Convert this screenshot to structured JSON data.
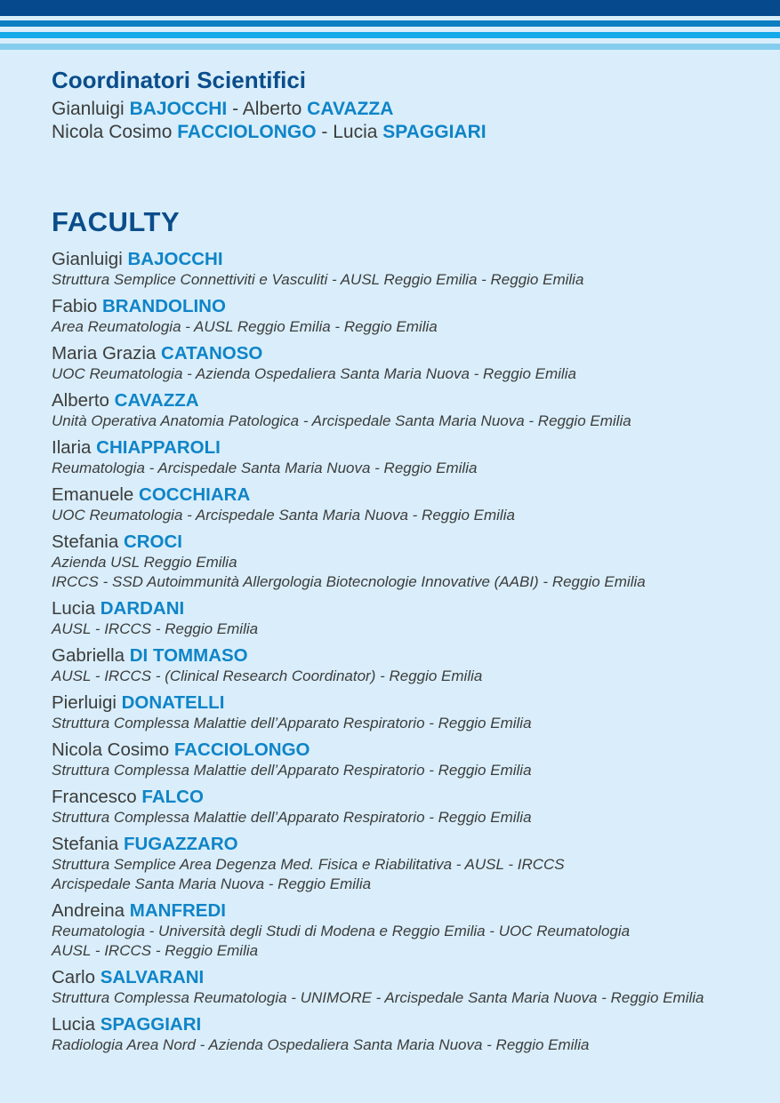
{
  "colors": {
    "background": "#d9eefa",
    "navy": "#0b4d8b",
    "blue": "#0f84c8",
    "text": "#3c3c3c",
    "stripe_navy": "#06498c",
    "stripe_blue": "#0c7ec2",
    "stripe_bright": "#14aae9",
    "stripe_sky": "#85cdef",
    "stripe_light": "#d9eefa"
  },
  "coordinators": {
    "heading": "Coordinatori Scientifici",
    "line1": {
      "given1": "Gianluigi",
      "surname1": "BAJOCCHI",
      "sep": "-",
      "given2": "Alberto",
      "surname2": "CAVAZZA"
    },
    "line2": {
      "given1": "Nicola Cosimo",
      "surname1": "FACCIOLONGO",
      "sep": "-",
      "given2": "Lucia",
      "surname2": "SPAGGIARI"
    }
  },
  "faculty": {
    "heading": "FACULTY",
    "entries": [
      {
        "given": "Gianluigi",
        "surname": "BAJOCCHI",
        "affiliations": [
          "Struttura Semplice Connettiviti e Vasculiti - AUSL Reggio Emilia - Reggio Emilia"
        ]
      },
      {
        "given": "Fabio",
        "surname": "BRANDOLINO",
        "affiliations": [
          "Area Reumatologia - AUSL Reggio Emilia - Reggio Emilia"
        ]
      },
      {
        "given": "Maria Grazia",
        "surname": "CATANOSO",
        "affiliations": [
          "UOC Reumatologia - Azienda Ospedaliera Santa Maria Nuova - Reggio Emilia"
        ]
      },
      {
        "given": "Alberto",
        "surname": "CAVAZZA",
        "affiliations": [
          "Unità Operativa Anatomia Patologica - Arcispedale Santa Maria Nuova - Reggio Emilia"
        ]
      },
      {
        "given": "Ilaria",
        "surname": "CHIAPPAROLI",
        "affiliations": [
          "Reumatologia - Arcispedale Santa Maria Nuova - Reggio Emilia"
        ]
      },
      {
        "given": "Emanuele",
        "surname": "COCCHIARA",
        "affiliations": [
          "UOC Reumatologia - Arcispedale Santa Maria Nuova - Reggio Emilia"
        ]
      },
      {
        "given": "Stefania",
        "surname": "CROCI",
        "affiliations": [
          "Azienda USL Reggio Emilia",
          "IRCCS - SSD Autoimmunità Allergologia Biotecnologie Innovative (AABI) - Reggio Emilia"
        ]
      },
      {
        "given": "Lucia",
        "surname": "DARDANI",
        "affiliations": [
          "AUSL - IRCCS - Reggio Emilia"
        ]
      },
      {
        "given": "Gabriella",
        "surname": "DI TOMMASO",
        "affiliations": [
          "AUSL - IRCCS - (Clinical Research Coordinator) - Reggio Emilia"
        ]
      },
      {
        "given": "Pierluigi",
        "surname": "DONATELLI",
        "affiliations": [
          "Struttura Complessa Malattie dell’Apparato Respiratorio - Reggio Emilia"
        ]
      },
      {
        "given": "Nicola Cosimo",
        "surname": "FACCIOLONGO",
        "affiliations": [
          "Struttura Complessa Malattie dell’Apparato Respiratorio - Reggio Emilia"
        ]
      },
      {
        "given": "Francesco",
        "surname": "FALCO",
        "affiliations": [
          "Struttura Complessa Malattie dell’Apparato Respiratorio - Reggio Emilia"
        ]
      },
      {
        "given": "Stefania",
        "surname": "FUGAZZARO",
        "affiliations": [
          "Struttura Semplice Area Degenza Med. Fisica e Riabilitativa - AUSL - IRCCS",
          "Arcispedale Santa Maria Nuova - Reggio Emilia"
        ]
      },
      {
        "given": "Andreina",
        "surname": "MANFREDI",
        "affiliations": [
          "Reumatologia - Università degli Studi di Modena e Reggio Emilia - UOC Reumatologia",
          "AUSL - IRCCS - Reggio Emilia"
        ]
      },
      {
        "given": "Carlo",
        "surname": "SALVARANI",
        "affiliations": [
          "Struttura Complessa Reumatologia - UNIMORE - Arcispedale Santa Maria Nuova - Reggio Emilia"
        ]
      },
      {
        "given": "Lucia",
        "surname": "SPAGGIARI",
        "affiliations": [
          "Radiologia Area Nord - Azienda Ospedaliera Santa Maria Nuova - Reggio Emilia"
        ]
      }
    ]
  }
}
